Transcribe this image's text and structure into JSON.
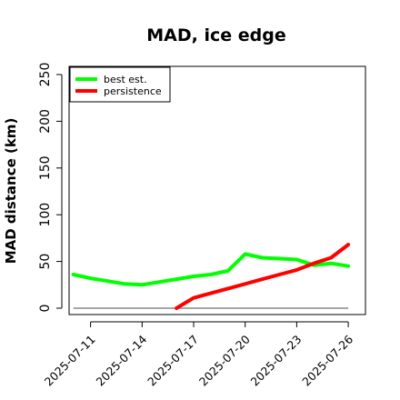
{
  "chart_data": {
    "type": "line",
    "title": "MAD, ice edge",
    "xlabel": "",
    "ylabel": "MAD distance (km)",
    "ylim": [
      0,
      250
    ],
    "yticks": [
      0,
      50,
      100,
      150,
      200,
      250
    ],
    "xlim": [
      "2025-07-09T18:00",
      "2025-07-27T00:00"
    ],
    "xticks": [
      "2025-07-11",
      "2025-07-14",
      "2025-07-17",
      "2025-07-20",
      "2025-07-23",
      "2025-07-26"
    ],
    "legend_position": "top-left",
    "grid": false,
    "reference_line": {
      "y": 0,
      "x_from": "2025-07-10",
      "x_to": "2025-07-26",
      "color": "#888888"
    },
    "series": [
      {
        "name": "best est.",
        "color": "#00ff00",
        "x": [
          "2025-07-10",
          "2025-07-11",
          "2025-07-12",
          "2025-07-13",
          "2025-07-14",
          "2025-07-15",
          "2025-07-16",
          "2025-07-17",
          "2025-07-18",
          "2025-07-19",
          "2025-07-20",
          "2025-07-21",
          "2025-07-22",
          "2025-07-23",
          "2025-07-24",
          "2025-07-25",
          "2025-07-26"
        ],
        "y": [
          36,
          32,
          29,
          26,
          25,
          28,
          31,
          34,
          36,
          40,
          58,
          54,
          53,
          52,
          46,
          48,
          45
        ]
      },
      {
        "name": "persistence",
        "color": "#ff0000",
        "x": [
          "2025-07-16",
          "2025-07-17",
          "2025-07-18",
          "2025-07-19",
          "2025-07-20",
          "2025-07-21",
          "2025-07-22",
          "2025-07-23",
          "2025-07-24",
          "2025-07-25",
          "2025-07-26"
        ],
        "y": [
          0,
          11,
          16,
          21,
          26,
          31,
          36,
          41,
          48,
          54,
          68
        ]
      }
    ]
  }
}
